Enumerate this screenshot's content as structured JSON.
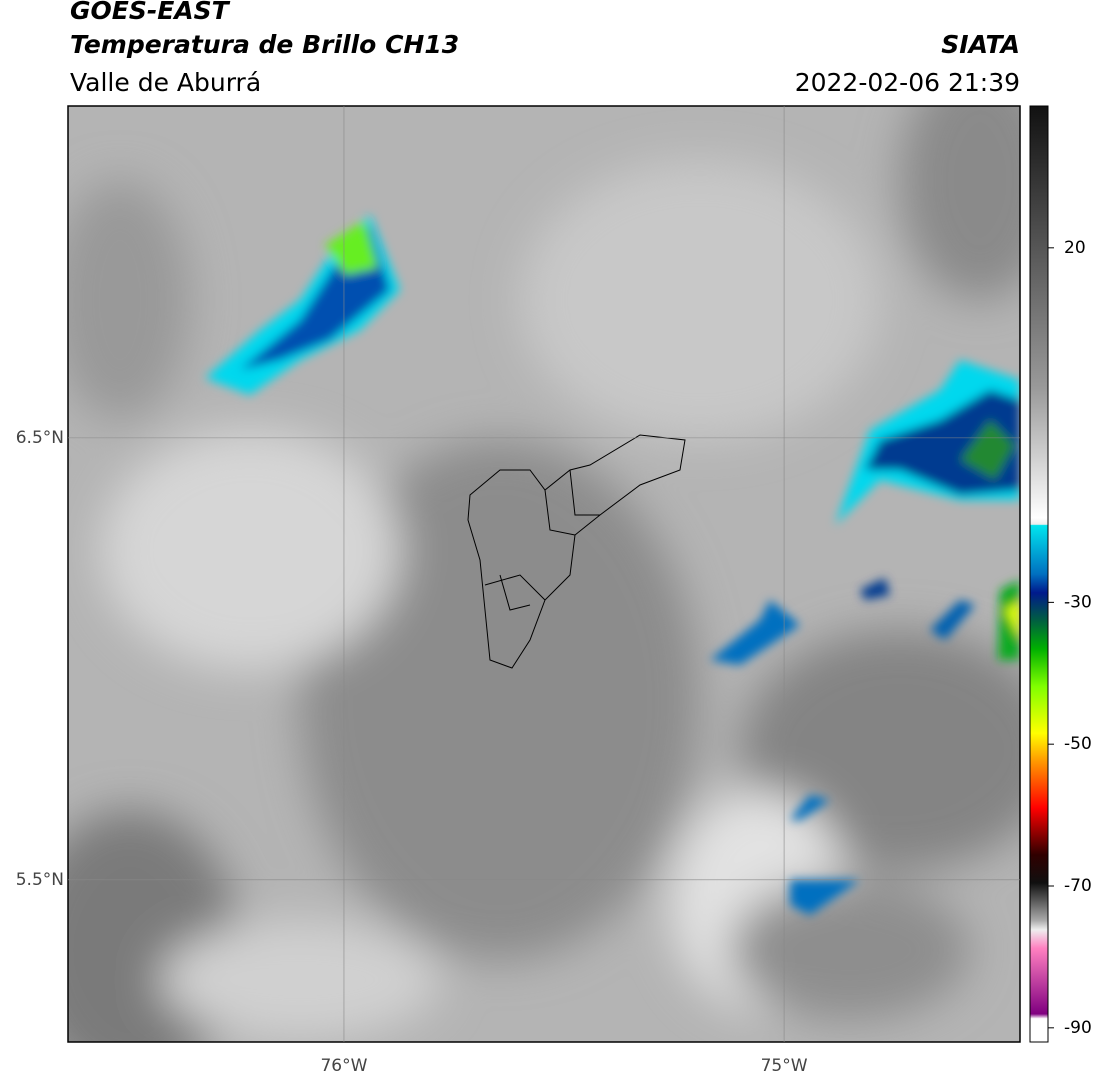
{
  "header": {
    "title": "GOES-EAST",
    "subtitle": "Temperatura de Brillo CH13",
    "region": "Valle de Aburrá",
    "source": "SIATA",
    "datetime": "2022-02-06 21:39"
  },
  "map": {
    "xlim": [
      -76.627,
      -74.464
    ],
    "ylim": [
      5.133,
      7.251
    ],
    "xticks": [
      {
        "value": -76,
        "label": "76°W"
      },
      {
        "value": -75,
        "label": "75°W"
      }
    ],
    "yticks": [
      {
        "value": 6.5,
        "label": "6.5°N"
      },
      {
        "value": 5.5,
        "label": "5.5°N"
      }
    ]
  },
  "colorbar": {
    "lim": [
      -92,
      40
    ],
    "ticks": [
      20,
      -30,
      -50,
      -70,
      -90
    ]
  }
}
